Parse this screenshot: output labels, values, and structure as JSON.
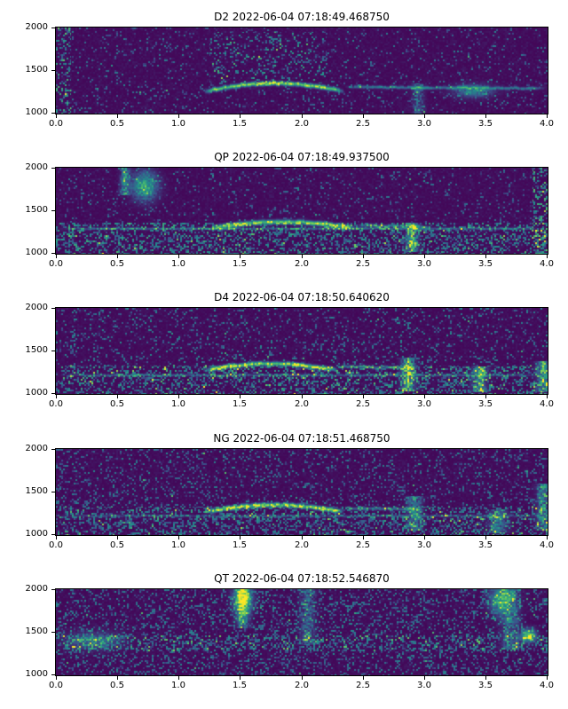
{
  "figure": {
    "background": "#ffffff",
    "colormap": "viridis",
    "colormap_stops": [
      [
        0.0,
        "#440154"
      ],
      [
        0.25,
        "#3b528b"
      ],
      [
        0.5,
        "#21918c"
      ],
      [
        0.75,
        "#5ec962"
      ],
      [
        1.0,
        "#fde725"
      ]
    ]
  },
  "axes": {
    "xlim": [
      0.0,
      4.0
    ],
    "ylim": [
      1000,
      2000
    ],
    "x_ticks": [
      0.0,
      0.5,
      1.0,
      1.5,
      2.0,
      2.5,
      3.0,
      3.5,
      4.0
    ],
    "x_tick_labels": [
      "0.0",
      "0.5",
      "1.0",
      "1.5",
      "2.0",
      "2.5",
      "3.0",
      "3.5",
      "4.0"
    ],
    "y_ticks": [
      2000,
      1500,
      1000
    ],
    "y_tick_labels": [
      "2000",
      "1500",
      "1000"
    ]
  },
  "chart_data": [
    {
      "type": "heatmap",
      "subtype": "spectrogram",
      "title": "D2 2022-06-04 07:18:49.468750",
      "xlim": [
        0.0,
        4.0
      ],
      "ylim": [
        1000,
        2000
      ],
      "xticks": [
        0.0,
        0.5,
        1.0,
        1.5,
        2.0,
        2.5,
        3.0,
        3.5,
        4.0
      ],
      "yticks": [
        1000,
        1500,
        2000
      ],
      "colormap": "viridis",
      "features": [
        {
          "kind": "speckle",
          "x": [
            0.0,
            0.12
          ],
          "f": [
            1000,
            2000
          ],
          "density": 0.6,
          "intensity": 0.55
        },
        {
          "kind": "speckle",
          "x": [
            0.0,
            4.0
          ],
          "f": [
            1000,
            2000
          ],
          "density": 0.12,
          "intensity": 0.35
        },
        {
          "kind": "speckle",
          "x": [
            1.25,
            2.2
          ],
          "f": [
            1350,
            1950
          ],
          "density": 0.3,
          "intensity": 0.5
        },
        {
          "kind": "tone",
          "x": [
            1.2,
            2.35
          ],
          "f": [
            1255,
            1350
          ],
          "arc": true,
          "width": 16,
          "intensity": 1.0
        },
        {
          "kind": "tone",
          "x": [
            2.35,
            4.0
          ],
          "f": [
            1305,
            1290
          ],
          "arc": false,
          "width": 12,
          "intensity": 0.45
        },
        {
          "kind": "blob",
          "x": 3.4,
          "f": 1260,
          "sx": 0.1,
          "sf": 50,
          "intensity": 0.55
        },
        {
          "kind": "streak",
          "x": 2.95,
          "f": [
            1000,
            1350
          ],
          "sx": 0.03,
          "intensity": 0.4
        }
      ]
    },
    {
      "type": "heatmap",
      "subtype": "spectrogram",
      "title": "QP 2022-06-04 07:18:49.937500",
      "xlim": [
        0.0,
        4.0
      ],
      "ylim": [
        1000,
        2000
      ],
      "xticks": [
        0.0,
        0.5,
        1.0,
        1.5,
        2.0,
        2.5,
        3.0,
        3.5,
        4.0
      ],
      "yticks": [
        1000,
        1500,
        2000
      ],
      "colormap": "viridis",
      "features": [
        {
          "kind": "speckle",
          "x": [
            0.0,
            4.0
          ],
          "f": [
            1000,
            2000
          ],
          "density": 0.12,
          "intensity": 0.35
        },
        {
          "kind": "band",
          "x": [
            0.0,
            4.0
          ],
          "f": [
            1000,
            1360
          ],
          "density": 0.7,
          "intensity": 0.5
        },
        {
          "kind": "tone",
          "x": [
            0.0,
            4.0
          ],
          "f": [
            1290,
            1290
          ],
          "arc": false,
          "width": 10,
          "intensity": 0.35
        },
        {
          "kind": "tone",
          "x": [
            1.25,
            2.45
          ],
          "f": [
            1295,
            1370
          ],
          "arc": true,
          "width": 18,
          "intensity": 0.85
        },
        {
          "kind": "tone",
          "x": [
            2.45,
            3.05
          ],
          "f": [
            1330,
            1310
          ],
          "arc": false,
          "width": 12,
          "intensity": 0.4
        },
        {
          "kind": "blob",
          "x": 0.72,
          "f": 1790,
          "sx": 0.07,
          "sf": 110,
          "intensity": 0.8
        },
        {
          "kind": "streak",
          "x": 0.56,
          "f": [
            1680,
            2000
          ],
          "sx": 0.025,
          "intensity": 0.6
        },
        {
          "kind": "streak",
          "x": 2.9,
          "f": [
            1020,
            1360
          ],
          "sx": 0.03,
          "intensity": 0.8
        },
        {
          "kind": "band",
          "x": [
            3.88,
            4.0
          ],
          "f": [
            1000,
            2000
          ],
          "density": 0.65,
          "intensity": 0.6
        }
      ]
    },
    {
      "type": "heatmap",
      "subtype": "spectrogram",
      "title": "D4 2022-06-04 07:18:50.640620",
      "xlim": [
        0.0,
        4.0
      ],
      "ylim": [
        1000,
        2000
      ],
      "xticks": [
        0.0,
        0.5,
        1.0,
        1.5,
        2.0,
        2.5,
        3.0,
        3.5,
        4.0
      ],
      "yticks": [
        1000,
        1500,
        2000
      ],
      "colormap": "viridis",
      "features": [
        {
          "kind": "speckle",
          "x": [
            0.0,
            4.0
          ],
          "f": [
            1000,
            2000
          ],
          "density": 0.22,
          "intensity": 0.4
        },
        {
          "kind": "band",
          "x": [
            0.0,
            4.0
          ],
          "f": [
            1000,
            1330
          ],
          "density": 0.6,
          "intensity": 0.5
        },
        {
          "kind": "tone",
          "x": [
            0.0,
            4.0
          ],
          "f": [
            1215,
            1215
          ],
          "arc": false,
          "width": 10,
          "intensity": 0.3
        },
        {
          "kind": "tone",
          "x": [
            1.2,
            2.3
          ],
          "f": [
            1275,
            1350
          ],
          "arc": true,
          "width": 16,
          "intensity": 1.0
        },
        {
          "kind": "tone",
          "x": [
            2.3,
            2.95
          ],
          "f": [
            1315,
            1300
          ],
          "arc": false,
          "width": 12,
          "intensity": 0.4
        },
        {
          "kind": "streak",
          "x": 2.87,
          "f": [
            1030,
            1420
          ],
          "sx": 0.035,
          "intensity": 0.85
        },
        {
          "kind": "streak",
          "x": 3.45,
          "f": [
            1020,
            1320
          ],
          "sx": 0.04,
          "intensity": 0.7
        },
        {
          "kind": "streak",
          "x": 3.97,
          "f": [
            1020,
            1380
          ],
          "sx": 0.035,
          "intensity": 0.75
        }
      ]
    },
    {
      "type": "heatmap",
      "subtype": "spectrogram",
      "title": "NG 2022-06-04 07:18:51.468750",
      "xlim": [
        0.0,
        4.0
      ],
      "ylim": [
        1000,
        2000
      ],
      "xticks": [
        0.0,
        0.5,
        1.0,
        1.5,
        2.0,
        2.5,
        3.0,
        3.5,
        4.0
      ],
      "yticks": [
        1000,
        1500,
        2000
      ],
      "colormap": "viridis",
      "features": [
        {
          "kind": "speckle",
          "x": [
            0.0,
            4.0
          ],
          "f": [
            1000,
            2000
          ],
          "density": 0.3,
          "intensity": 0.38
        },
        {
          "kind": "band",
          "x": [
            0.0,
            4.0
          ],
          "f": [
            1000,
            1330
          ],
          "density": 0.55,
          "intensity": 0.45
        },
        {
          "kind": "tone",
          "x": [
            0.0,
            4.0
          ],
          "f": [
            1220,
            1220
          ],
          "arc": false,
          "width": 10,
          "intensity": 0.25
        },
        {
          "kind": "tone",
          "x": [
            1.2,
            2.35
          ],
          "f": [
            1265,
            1350
          ],
          "arc": true,
          "width": 17,
          "intensity": 1.0
        },
        {
          "kind": "tone",
          "x": [
            2.35,
            3.0
          ],
          "f": [
            1310,
            1295
          ],
          "arc": false,
          "width": 12,
          "intensity": 0.38
        },
        {
          "kind": "streak",
          "x": 2.92,
          "f": [
            1050,
            1450
          ],
          "sx": 0.04,
          "intensity": 0.55
        },
        {
          "kind": "streak",
          "x": 3.6,
          "f": [
            1020,
            1300
          ],
          "sx": 0.05,
          "intensity": 0.5
        },
        {
          "kind": "streak",
          "x": 3.97,
          "f": [
            1050,
            1600
          ],
          "sx": 0.035,
          "intensity": 0.6
        }
      ]
    },
    {
      "type": "heatmap",
      "subtype": "spectrogram",
      "title": "QT 2022-06-04 07:18:52.546870",
      "xlim": [
        0.0,
        4.0
      ],
      "ylim": [
        1000,
        2000
      ],
      "xticks": [
        0.0,
        0.5,
        1.0,
        1.5,
        2.0,
        2.5,
        3.0,
        3.5,
        4.0
      ],
      "yticks": [
        1000,
        1500,
        2000
      ],
      "colormap": "viridis",
      "features": [
        {
          "kind": "speckle",
          "x": [
            0.0,
            4.0
          ],
          "f": [
            1000,
            2000
          ],
          "density": 0.45,
          "intensity": 0.4
        },
        {
          "kind": "band",
          "x": [
            0.0,
            4.0
          ],
          "f": [
            1280,
            1460
          ],
          "density": 0.55,
          "intensity": 0.45
        },
        {
          "kind": "blob",
          "x": 1.52,
          "f": 1900,
          "sx": 0.05,
          "sf": 130,
          "intensity": 1.0
        },
        {
          "kind": "streak",
          "x": 1.52,
          "f": [
            1550,
            2000
          ],
          "sx": 0.03,
          "intensity": 0.6
        },
        {
          "kind": "streak",
          "x": 2.05,
          "f": [
            1350,
            2000
          ],
          "sx": 0.04,
          "intensity": 0.4
        },
        {
          "kind": "blob",
          "x": 3.62,
          "f": 1880,
          "sx": 0.06,
          "sf": 110,
          "intensity": 0.7
        },
        {
          "kind": "blob",
          "x": 3.85,
          "f": 1460,
          "sx": 0.04,
          "sf": 50,
          "intensity": 1.0
        },
        {
          "kind": "streak",
          "x": 3.7,
          "f": [
            1300,
            2000
          ],
          "sx": 0.05,
          "intensity": 0.45
        },
        {
          "kind": "blob",
          "x": 0.3,
          "f": 1400,
          "sx": 0.15,
          "sf": 70,
          "intensity": 0.4
        }
      ]
    }
  ]
}
